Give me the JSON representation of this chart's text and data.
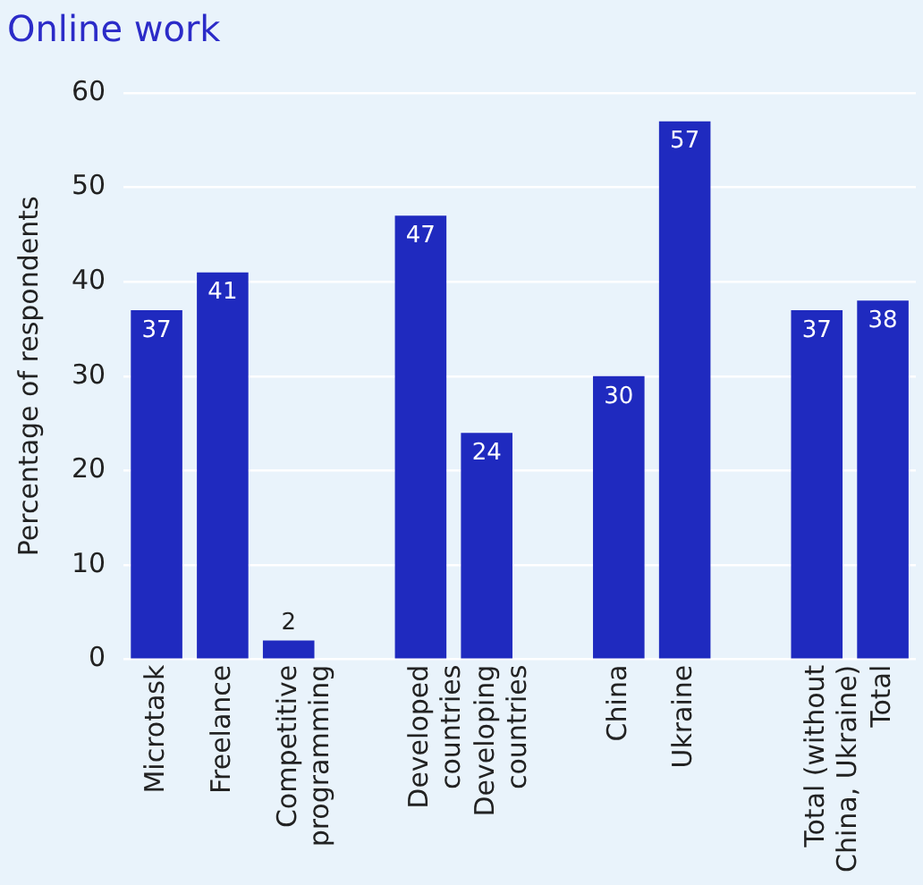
{
  "chart_data": {
    "type": "bar",
    "title": "Online work",
    "ylabel": "Percentage of respondents",
    "categories": [
      "Microtask",
      "Freelance",
      "Competitive programming",
      null,
      "Developed countries",
      "Developing countries",
      null,
      "China",
      "Ukraine",
      null,
      "Total (without China, Ukraine)",
      "Total"
    ],
    "values": [
      37,
      41,
      2,
      null,
      47,
      24,
      null,
      30,
      57,
      null,
      37,
      38
    ],
    "color": "#1f2abf",
    "ylim": [
      0,
      60
    ],
    "yticks": [
      0,
      10,
      20,
      30,
      40,
      50,
      60
    ],
    "grid": "y",
    "data_labels": true
  }
}
